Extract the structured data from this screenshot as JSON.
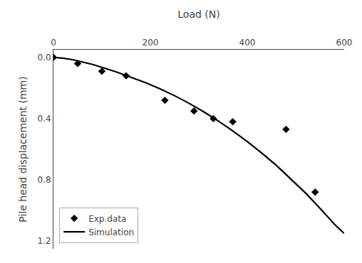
{
  "chart_data": {
    "type": "line",
    "x_label": "Load (N)",
    "y_label": "Pile head displacement (mm)",
    "xlim": [
      0,
      600
    ],
    "ylim": [
      1.25,
      -0.05
    ],
    "xticks": [
      0,
      200,
      400,
      600
    ],
    "yticks": [
      {
        "value": 0,
        "label": "0.0"
      },
      0.4,
      0.8,
      1.2
    ],
    "grid": false,
    "legend": "lower left",
    "series": [
      {
        "name": "Exp.data",
        "type": "scatter",
        "marker": "diamond",
        "color": "#000000",
        "x": [
          0,
          50,
          100,
          150,
          230,
          290,
          330,
          370,
          480,
          540
        ],
        "values": [
          0.0,
          0.04,
          0.09,
          0.12,
          0.28,
          0.35,
          0.4,
          0.42,
          0.47,
          0.88
        ]
      },
      {
        "name": "Simulation",
        "type": "line",
        "line_style": "solid",
        "color": "#000000",
        "x": [
          0,
          20,
          40,
          60,
          80,
          100,
          130,
          160,
          190,
          220,
          250,
          280,
          310,
          340,
          370,
          400,
          430,
          460,
          490,
          520,
          550,
          580,
          600
        ],
        "values": [
          0,
          0.005,
          0.015,
          0.03,
          0.045,
          0.065,
          0.095,
          0.13,
          0.165,
          0.205,
          0.25,
          0.3,
          0.355,
          0.415,
          0.48,
          0.55,
          0.625,
          0.705,
          0.795,
          0.885,
          0.985,
          1.09,
          1.15
        ]
      }
    ]
  }
}
